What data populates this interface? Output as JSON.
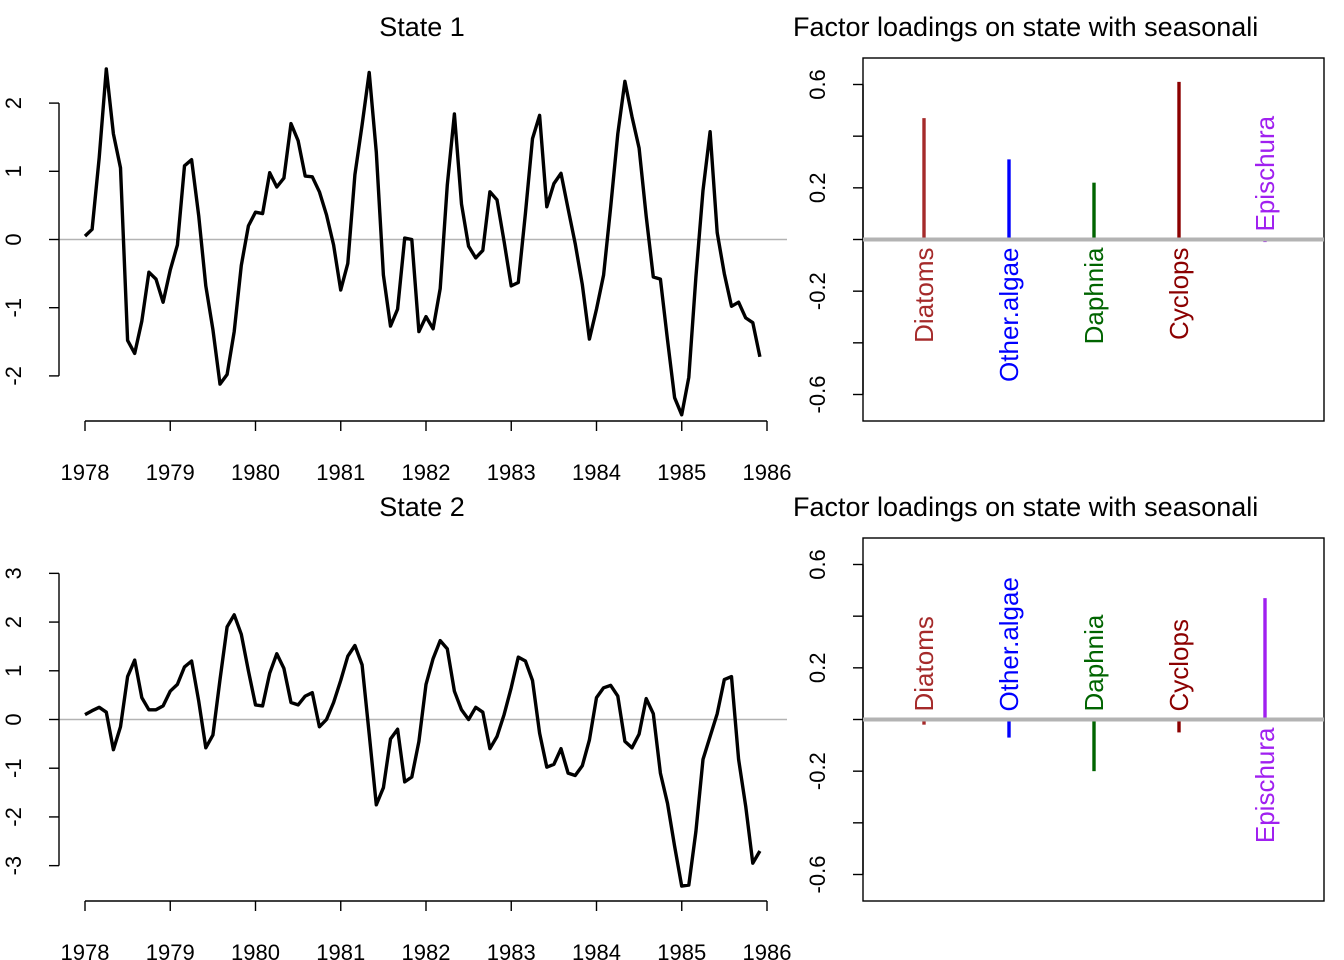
{
  "chart_data": [
    {
      "type": "line",
      "title": "State 1",
      "xlabel": "",
      "ylabel": "",
      "xlim": [
        1978,
        1986
      ],
      "ylim": [
        -2.5,
        2.5
      ],
      "x_ticks": [
        "1978",
        "1979",
        "1980",
        "1981",
        "1982",
        "1983",
        "1984",
        "1985",
        "1986"
      ],
      "y_ticks": [
        "-2",
        "-1",
        "0",
        "1",
        "2"
      ],
      "reference_line": 0,
      "series_color": "#000000",
      "x_start": 1978,
      "x_step": 0.08333,
      "values": [
        0.05,
        0.15,
        1.2,
        2.5,
        1.55,
        1.05,
        -1.48,
        -1.67,
        -1.2,
        -0.48,
        -0.58,
        -0.92,
        -0.45,
        -0.08,
        1.08,
        1.17,
        0.35,
        -0.68,
        -1.32,
        -2.12,
        -1.98,
        -1.35,
        -0.38,
        0.2,
        0.4,
        0.38,
        0.98,
        0.77,
        0.9,
        1.7,
        1.45,
        0.93,
        0.92,
        0.7,
        0.36,
        -0.08,
        -0.74,
        -0.35,
        0.95,
        1.68,
        2.45,
        1.28,
        -0.52,
        -1.27,
        -1.02,
        0.02,
        0.0,
        -1.35,
        -1.13,
        -1.31,
        -0.72,
        0.8,
        1.84,
        0.52,
        -0.1,
        -0.27,
        -0.16,
        0.7,
        0.58,
        -0.03,
        -0.68,
        -0.63,
        0.38,
        1.48,
        1.82,
        0.48,
        0.82,
        0.97,
        0.45,
        -0.06,
        -0.66,
        -1.46,
        -1.02,
        -0.52,
        0.48,
        1.55,
        2.32,
        1.8,
        1.34,
        0.34,
        -0.55,
        -0.58,
        -1.47,
        -2.32,
        -2.57,
        -2.02,
        -0.55,
        0.72,
        1.58,
        0.1,
        -0.5,
        -0.98,
        -0.92,
        -1.15,
        -1.22,
        -1.72
      ]
    },
    {
      "type": "bar",
      "title": "Factor loadings on state with seasonali",
      "xlabel": "",
      "ylabel": "",
      "ylim": [
        -0.66,
        0.66
      ],
      "y_ticks": [
        "-0.6",
        "-0.2",
        "0.2",
        "0.6"
      ],
      "reference_line": 0,
      "categories": [
        "Diatoms",
        "Other.algae",
        "Daphnia",
        "Cyclops",
        "Epischura"
      ],
      "values": [
        0.47,
        0.31,
        0.22,
        0.61,
        -0.01
      ],
      "colors": [
        "#a52a2a",
        "#0000ff",
        "#006400",
        "#8b0000",
        "#a020f0"
      ]
    },
    {
      "type": "line",
      "title": "State 2",
      "xlabel": "",
      "ylabel": "",
      "xlim": [
        1978,
        1986
      ],
      "ylim": [
        -3.5,
        3.5
      ],
      "x_ticks": [
        "1978",
        "1979",
        "1980",
        "1981",
        "1982",
        "1983",
        "1984",
        "1985",
        "1986"
      ],
      "y_ticks": [
        "-3",
        "-2",
        "-1",
        "0",
        "1",
        "2",
        "3"
      ],
      "reference_line": 0,
      "series_color": "#000000",
      "x_start": 1978,
      "x_step": 0.08333,
      "values": [
        0.1,
        0.18,
        0.25,
        0.15,
        -0.62,
        -0.15,
        0.88,
        1.22,
        0.45,
        0.2,
        0.2,
        0.28,
        0.58,
        0.72,
        1.08,
        1.2,
        0.38,
        -0.58,
        -0.32,
        0.82,
        1.9,
        2.15,
        1.75,
        1.0,
        0.3,
        0.28,
        0.95,
        1.35,
        1.05,
        0.35,
        0.3,
        0.48,
        0.55,
        -0.15,
        0.0,
        0.35,
        0.8,
        1.3,
        1.52,
        1.12,
        -0.3,
        -1.75,
        -1.4,
        -0.4,
        -0.2,
        -1.28,
        -1.18,
        -0.45,
        0.72,
        1.25,
        1.62,
        1.45,
        0.58,
        0.2,
        0.0,
        0.25,
        0.15,
        -0.6,
        -0.35,
        0.1,
        0.65,
        1.28,
        1.2,
        0.8,
        -0.28,
        -0.98,
        -0.92,
        -0.6,
        -1.1,
        -1.15,
        -0.95,
        -0.42,
        0.45,
        0.65,
        0.7,
        0.48,
        -0.45,
        -0.58,
        -0.3,
        0.43,
        0.12,
        -1.1,
        -1.72,
        -2.6,
        -3.42,
        -3.4,
        -2.3,
        -0.82,
        -0.35,
        0.12,
        0.82,
        0.88,
        -0.82,
        -1.78,
        -2.95,
        -2.7
      ]
    },
    {
      "type": "bar",
      "title": "Factor loadings on state with seasonali",
      "xlabel": "",
      "ylabel": "",
      "ylim": [
        -0.66,
        0.66
      ],
      "y_ticks": [
        "-0.6",
        "-0.2",
        "0.2",
        "0.6"
      ],
      "reference_line": 0,
      "categories": [
        "Diatoms",
        "Other.algae",
        "Daphnia",
        "Cyclops",
        "Epischura"
      ],
      "values": [
        -0.02,
        -0.07,
        -0.2,
        -0.05,
        0.47
      ],
      "colors": [
        "#a52a2a",
        "#0000ff",
        "#006400",
        "#8b0000",
        "#a020f0"
      ]
    }
  ]
}
